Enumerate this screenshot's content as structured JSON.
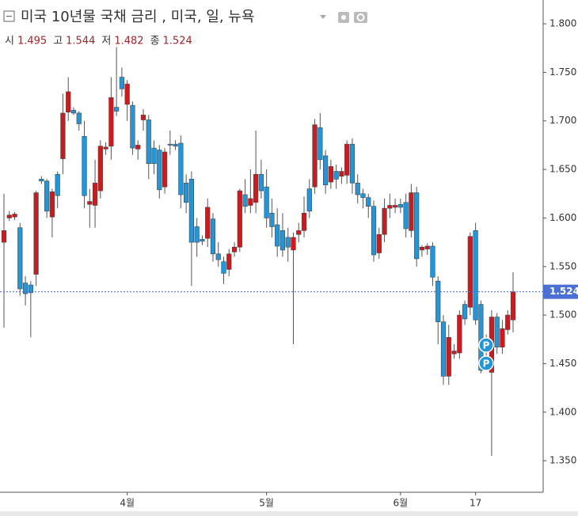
{
  "chart_data": {
    "type": "candlestick",
    "title": "미국 10년물 국채 금리 , 미국, 일, 뉴욕",
    "header": [
      {
        "label": "시",
        "value": 1.495
      },
      {
        "label": "고",
        "value": 1.544
      },
      {
        "label": "저",
        "value": 1.482
      },
      {
        "label": "종",
        "value": 1.524
      }
    ],
    "up_color": "#d0191f",
    "down_color": "#2396d9",
    "categories": [
      null,
      null,
      null,
      null,
      null,
      null,
      null,
      null,
      null,
      null,
      null,
      null,
      null,
      null,
      null,
      null,
      null,
      null,
      null,
      null,
      null,
      null,
      null,
      "4월",
      null,
      null,
      null,
      null,
      null,
      null,
      null,
      null,
      null,
      null,
      null,
      null,
      null,
      null,
      null,
      null,
      null,
      null,
      null,
      null,
      null,
      null,
      null,
      null,
      null,
      "5월",
      null,
      null,
      null,
      null,
      null,
      null,
      null,
      null,
      null,
      null,
      null,
      null,
      null,
      null,
      null,
      null,
      null,
      null,
      null,
      null,
      null,
      null,
      null,
      null,
      "6월",
      null,
      null,
      null,
      null,
      null,
      null,
      null,
      null,
      null,
      null,
      null,
      null,
      null,
      "17",
      null,
      null,
      null,
      null,
      null,
      null,
      null
    ],
    "open": [
      1.575,
      1.6,
      1.601,
      1.59,
      1.533,
      1.531,
      1.542,
      1.64,
      1.638,
      1.601,
      1.645,
      1.661,
      1.709,
      1.711,
      1.708,
      1.684,
      1.614,
      1.613,
      1.628,
      1.671,
      1.674,
      1.714,
      1.745,
      1.717,
      1.716,
      1.671,
      1.701,
      1.701,
      1.672,
      1.67,
      1.632,
      1.676,
      1.676,
      1.677,
      1.636,
      1.64,
      1.591,
      1.578,
      1.579,
      1.599,
      1.563,
      1.555,
      1.547,
      1.565,
      1.57,
      1.624,
      1.613,
      1.616,
      1.645,
      1.632,
      1.605,
      1.593,
      1.587,
      1.58,
      1.567,
      1.583,
      1.587,
      1.63,
      1.632,
      1.693,
      1.664,
      1.637,
      1.648,
      1.643,
      1.644,
      1.676,
      1.636,
      1.625,
      1.621,
      1.612,
      1.564,
      1.583,
      1.61,
      1.611,
      1.614,
      1.616,
      1.587,
      1.626,
      1.567,
      1.568,
      1.571,
      1.535,
      1.493,
      1.437,
      1.46,
      1.461,
      1.511,
      1.508,
      1.587,
      1.511,
      1.471,
      1.441,
      1.498,
      1.467,
      1.485,
      1.495
    ],
    "high": [
      1.625,
      1.607,
      1.606,
      1.595,
      1.54,
      1.535,
      1.628,
      1.643,
      1.64,
      1.63,
      1.648,
      1.728,
      1.745,
      1.714,
      1.71,
      1.7,
      1.63,
      1.66,
      1.68,
      1.678,
      1.745,
      1.776,
      1.755,
      1.742,
      1.72,
      1.68,
      1.712,
      1.706,
      1.68,
      1.675,
      1.672,
      1.69,
      1.68,
      1.685,
      1.645,
      1.648,
      1.6,
      1.582,
      1.62,
      1.605,
      1.575,
      1.56,
      1.568,
      1.575,
      1.63,
      1.64,
      1.65,
      1.69,
      1.66,
      1.65,
      1.62,
      1.61,
      1.605,
      1.59,
      1.585,
      1.595,
      1.622,
      1.64,
      1.702,
      1.708,
      1.67,
      1.66,
      1.655,
      1.652,
      1.68,
      1.682,
      1.645,
      1.63,
      1.625,
      1.618,
      1.59,
      1.62,
      1.625,
      1.62,
      1.62,
      1.625,
      1.635,
      1.632,
      1.572,
      1.574,
      1.575,
      1.54,
      1.5,
      1.49,
      1.47,
      1.505,
      1.515,
      1.585,
      1.595,
      1.515,
      1.48,
      1.505,
      1.502,
      1.495,
      1.505,
      1.544
    ],
    "low": [
      1.487,
      1.597,
      1.598,
      1.52,
      1.51,
      1.477,
      1.53,
      1.635,
      1.6,
      1.58,
      1.61,
      1.645,
      1.7,
      1.706,
      1.69,
      1.61,
      1.59,
      1.59,
      1.62,
      1.665,
      1.66,
      1.705,
      1.725,
      1.7,
      1.665,
      1.66,
      1.69,
      1.64,
      1.645,
      1.62,
      1.625,
      1.665,
      1.67,
      1.61,
      1.605,
      1.53,
      1.56,
      1.572,
      1.57,
      1.555,
      1.55,
      1.532,
      1.54,
      1.56,
      1.565,
      1.605,
      1.605,
      1.605,
      1.62,
      1.59,
      1.58,
      1.56,
      1.56,
      1.555,
      1.47,
      1.575,
      1.58,
      1.6,
      1.625,
      1.65,
      1.625,
      1.63,
      1.63,
      1.635,
      1.635,
      1.625,
      1.615,
      1.61,
      1.6,
      1.555,
      1.558,
      1.575,
      1.6,
      1.605,
      1.605,
      1.58,
      1.58,
      1.55,
      1.56,
      1.562,
      1.53,
      1.47,
      1.428,
      1.428,
      1.455,
      1.455,
      1.49,
      1.5,
      1.49,
      1.44,
      1.455,
      1.355,
      1.46,
      1.46,
      1.48,
      1.482
    ],
    "close": [
      1.587,
      1.603,
      1.604,
      1.527,
      1.522,
      1.523,
      1.626,
      1.638,
      1.607,
      1.627,
      1.623,
      1.708,
      1.73,
      1.708,
      1.697,
      1.623,
      1.617,
      1.636,
      1.674,
      1.673,
      1.724,
      1.71,
      1.733,
      1.738,
      1.672,
      1.675,
      1.706,
      1.656,
      1.656,
      1.629,
      1.668,
      1.675,
      1.674,
      1.624,
      1.616,
      1.575,
      1.575,
      1.576,
      1.611,
      1.563,
      1.557,
      1.543,
      1.563,
      1.57,
      1.628,
      1.612,
      1.62,
      1.645,
      1.628,
      1.6,
      1.591,
      1.571,
      1.567,
      1.57,
      1.58,
      1.587,
      1.605,
      1.607,
      1.696,
      1.66,
      1.634,
      1.653,
      1.64,
      1.648,
      1.676,
      1.636,
      1.624,
      1.621,
      1.612,
      1.562,
      1.583,
      1.61,
      1.613,
      1.613,
      1.611,
      1.589,
      1.626,
      1.558,
      1.57,
      1.571,
      1.539,
      1.493,
      1.437,
      1.477,
      1.463,
      1.5,
      1.496,
      1.581,
      1.495,
      1.443,
      1.463,
      1.498,
      1.467,
      1.486,
      1.5,
      1.524
    ],
    "ylim": [
      1.3175,
      1.8245
    ],
    "yticks": [
      {
        "value": 1.35,
        "label": "1.350"
      },
      {
        "value": 1.4,
        "label": "1.400"
      },
      {
        "value": 1.45,
        "label": "1.450"
      },
      {
        "value": 1.5,
        "label": "1.500"
      },
      {
        "value": 1.55,
        "label": "1.550"
      },
      {
        "value": 1.6,
        "label": "1.600"
      },
      {
        "value": 1.65,
        "label": "1.650"
      },
      {
        "value": 1.7,
        "label": "1.700"
      },
      {
        "value": 1.75,
        "label": "1.750"
      },
      {
        "value": 1.8,
        "label": "1.800"
      }
    ],
    "last_price": 1.524,
    "annotations": [
      "P",
      "P"
    ]
  }
}
